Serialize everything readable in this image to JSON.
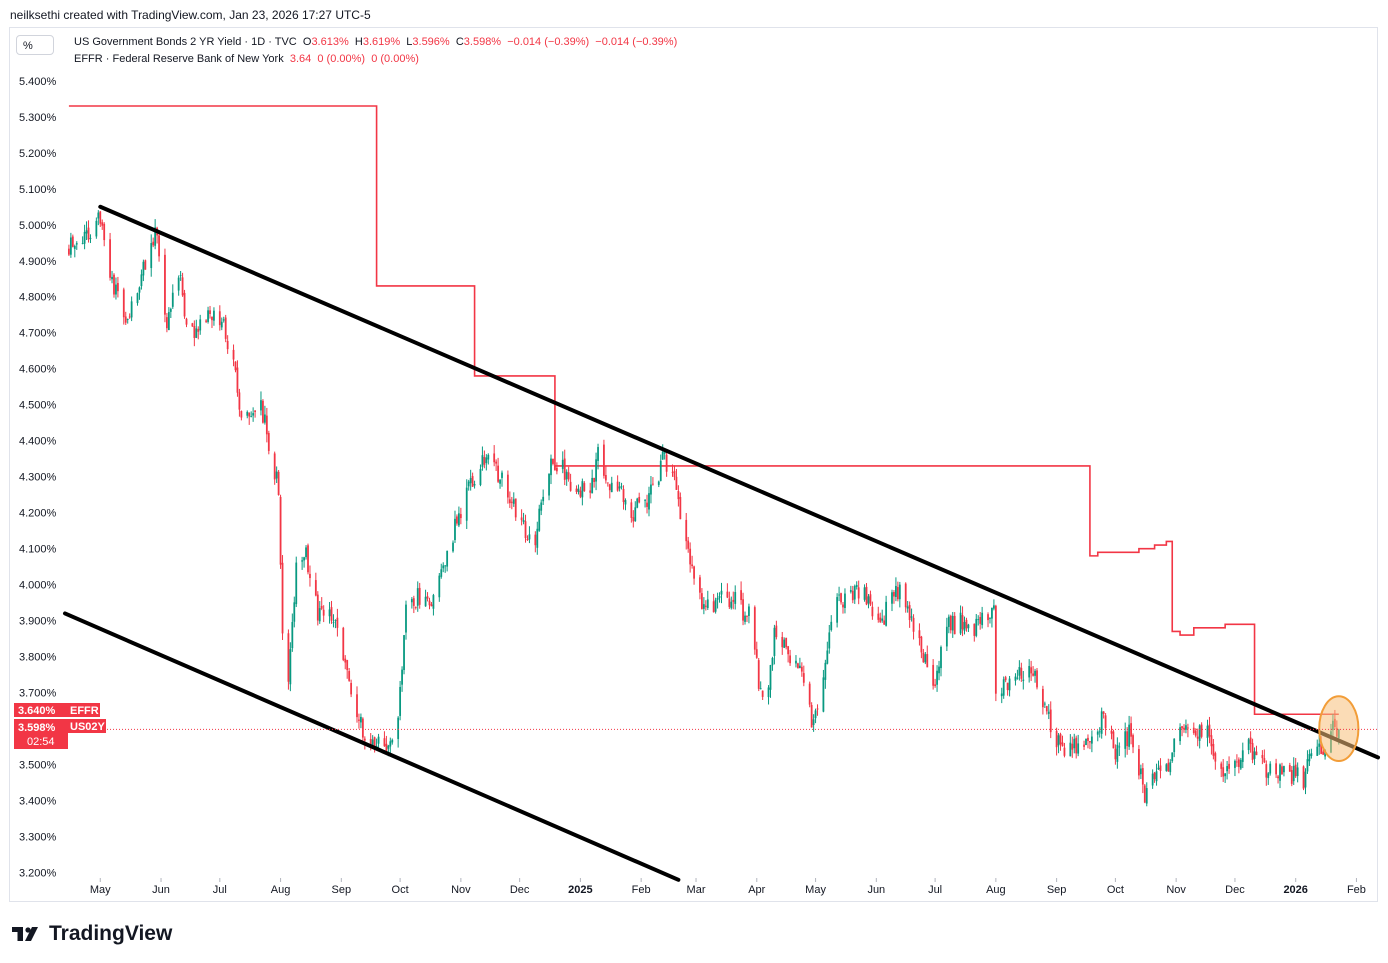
{
  "header": {
    "credit": "neilksethi created with TradingView.com, Jan 23, 2026 17:27 UTC-5",
    "percent_button": "%"
  },
  "legend": {
    "series1": {
      "name": "US Government Bonds 2 YR Yield · 1D · TVC",
      "open_label": "O",
      "open": "3.613%",
      "high_label": "H",
      "high": "3.619%",
      "low_label": "L",
      "low": "3.596%",
      "close_label": "C",
      "close": "3.598%",
      "change": "−0.014 (−0.39%)",
      "change2": "−0.014 (−0.39%)"
    },
    "series2": {
      "name": "EFFR · Federal Reserve Bank of New York",
      "value": "3.64",
      "change": "0 (0.00%)",
      "change2": "0 (0.00%)"
    }
  },
  "badges": {
    "effr_value": "3.640%",
    "effr_label": "EFFR",
    "us02y_value": "3.598%",
    "us02y_label": "US02Y",
    "countdown": "02:54"
  },
  "brand": {
    "name": "TradingView"
  },
  "colors": {
    "up": "#089981",
    "down": "#f23645",
    "effr": "#f23645",
    "trendline": "#000000",
    "highlight_fill": "#f7c07a",
    "highlight_stroke": "#f29d38"
  },
  "chart_data": {
    "type": "candlestick",
    "y_axis": {
      "ticks": [
        "5.400%",
        "5.300%",
        "5.200%",
        "5.100%",
        "5.000%",
        "4.900%",
        "4.800%",
        "4.700%",
        "4.600%",
        "4.500%",
        "4.400%",
        "4.300%",
        "4.200%",
        "4.100%",
        "4.000%",
        "3.900%",
        "3.800%",
        "3.700%",
        "3.600%",
        "3.500%",
        "3.400%",
        "3.300%",
        "3.200%"
      ],
      "range": [
        3.185,
        5.43
      ]
    },
    "x_axis": {
      "ticks": [
        {
          "label": "May",
          "date": "2024-05-01"
        },
        {
          "label": "Jun",
          "date": "2024-06-01"
        },
        {
          "label": "Jul",
          "date": "2024-07-01"
        },
        {
          "label": "Aug",
          "date": "2024-08-01"
        },
        {
          "label": "Sep",
          "date": "2024-09-01"
        },
        {
          "label": "Oct",
          "date": "2024-10-01"
        },
        {
          "label": "Nov",
          "date": "2024-11-01"
        },
        {
          "label": "Dec",
          "date": "2024-12-01"
        },
        {
          "label": "2025",
          "date": "2025-01-01",
          "bold": true
        },
        {
          "label": "Feb",
          "date": "2025-02-01"
        },
        {
          "label": "Mar",
          "date": "2025-03-01"
        },
        {
          "label": "Apr",
          "date": "2025-04-01"
        },
        {
          "label": "May",
          "date": "2025-05-01"
        },
        {
          "label": "Jun",
          "date": "2025-06-01"
        },
        {
          "label": "Jul",
          "date": "2025-07-01"
        },
        {
          "label": "Aug",
          "date": "2025-08-01"
        },
        {
          "label": "Sep",
          "date": "2025-09-01"
        },
        {
          "label": "Oct",
          "date": "2025-10-01"
        },
        {
          "label": "Nov",
          "date": "2025-11-01"
        },
        {
          "label": "Dec",
          "date": "2025-12-01"
        },
        {
          "label": "2026",
          "date": "2026-01-01",
          "bold": true
        },
        {
          "label": "Feb",
          "date": "2026-02-01"
        }
      ],
      "range": [
        "2024-04-13",
        "2026-02-12"
      ]
    },
    "series": [
      {
        "name": "US02Y",
        "kind": "candles",
        "anchors": [
          [
            "2024-04-15",
            4.93
          ],
          [
            "2024-04-25",
            4.98
          ],
          [
            "2024-05-01",
            5.03
          ],
          [
            "2024-05-08",
            4.82
          ],
          [
            "2024-05-15",
            4.74
          ],
          [
            "2024-05-22",
            4.86
          ],
          [
            "2024-05-29",
            4.99
          ],
          [
            "2024-06-04",
            4.73
          ],
          [
            "2024-06-10",
            4.88
          ],
          [
            "2024-06-14",
            4.7
          ],
          [
            "2024-06-20",
            4.72
          ],
          [
            "2024-06-28",
            4.75
          ],
          [
            "2024-07-03",
            4.72
          ],
          [
            "2024-07-08",
            4.6
          ],
          [
            "2024-07-12",
            4.48
          ],
          [
            "2024-07-16",
            4.44
          ],
          [
            "2024-07-22",
            4.51
          ],
          [
            "2024-07-26",
            4.38
          ],
          [
            "2024-07-31",
            4.27
          ],
          [
            "2024-08-02",
            3.88
          ],
          [
            "2024-08-05",
            3.75
          ],
          [
            "2024-08-09",
            4.05
          ],
          [
            "2024-08-14",
            4.08
          ],
          [
            "2024-08-20",
            3.93
          ],
          [
            "2024-08-28",
            3.9
          ],
          [
            "2024-09-04",
            3.75
          ],
          [
            "2024-09-10",
            3.62
          ],
          [
            "2024-09-16",
            3.57
          ],
          [
            "2024-09-24",
            3.55
          ],
          [
            "2024-09-30",
            3.63
          ],
          [
            "2024-10-04",
            3.93
          ],
          [
            "2024-10-10",
            3.97
          ],
          [
            "2024-10-16",
            3.95
          ],
          [
            "2024-10-22",
            4.05
          ],
          [
            "2024-10-28",
            4.14
          ],
          [
            "2024-11-06",
            4.28
          ],
          [
            "2024-11-11",
            4.33
          ],
          [
            "2024-11-15",
            4.36
          ],
          [
            "2024-11-20",
            4.3
          ],
          [
            "2024-11-26",
            4.25
          ],
          [
            "2024-12-03",
            4.16
          ],
          [
            "2024-12-09",
            4.13
          ],
          [
            "2024-12-13",
            4.24
          ],
          [
            "2024-12-18",
            4.35
          ],
          [
            "2024-12-23",
            4.32
          ],
          [
            "2024-12-31",
            4.25
          ],
          [
            "2025-01-07",
            4.28
          ],
          [
            "2025-01-10",
            4.38
          ],
          [
            "2025-01-15",
            4.27
          ],
          [
            "2025-01-21",
            4.28
          ],
          [
            "2025-01-27",
            4.2
          ],
          [
            "2025-02-03",
            4.23
          ],
          [
            "2025-02-10",
            4.29
          ],
          [
            "2025-02-12",
            4.36
          ],
          [
            "2025-02-18",
            4.28
          ],
          [
            "2025-02-24",
            4.13
          ],
          [
            "2025-03-03",
            3.95
          ],
          [
            "2025-03-10",
            3.92
          ],
          [
            "2025-03-14",
            3.98
          ],
          [
            "2025-03-21",
            3.95
          ],
          [
            "2025-03-28",
            3.91
          ],
          [
            "2025-04-03",
            3.7
          ],
          [
            "2025-04-07",
            3.7
          ],
          [
            "2025-04-10",
            3.87
          ],
          [
            "2025-04-15",
            3.82
          ],
          [
            "2025-04-22",
            3.79
          ],
          [
            "2025-04-30",
            3.6
          ],
          [
            "2025-05-06",
            3.8
          ],
          [
            "2025-05-12",
            3.98
          ],
          [
            "2025-05-16",
            3.96
          ],
          [
            "2025-05-22",
            4.0
          ],
          [
            "2025-05-29",
            3.94
          ],
          [
            "2025-06-04",
            3.89
          ],
          [
            "2025-06-09",
            4.0
          ],
          [
            "2025-06-16",
            3.95
          ],
          [
            "2025-06-24",
            3.82
          ],
          [
            "2025-06-30",
            3.72
          ],
          [
            "2025-07-07",
            3.88
          ],
          [
            "2025-07-14",
            3.9
          ],
          [
            "2025-07-23",
            3.88
          ],
          [
            "2025-07-31",
            3.94
          ],
          [
            "2025-08-01",
            3.7
          ],
          [
            "2025-08-07",
            3.73
          ],
          [
            "2025-08-14",
            3.76
          ],
          [
            "2025-08-20",
            3.75
          ],
          [
            "2025-08-28",
            3.62
          ],
          [
            "2025-09-05",
            3.52
          ],
          [
            "2025-09-11",
            3.55
          ],
          [
            "2025-09-18",
            3.58
          ],
          [
            "2025-09-25",
            3.63
          ],
          [
            "2025-10-01",
            3.54
          ],
          [
            "2025-10-09",
            3.59
          ],
          [
            "2025-10-16",
            3.42
          ],
          [
            "2025-10-20",
            3.46
          ],
          [
            "2025-10-28",
            3.49
          ],
          [
            "2025-11-03",
            3.6
          ],
          [
            "2025-11-10",
            3.59
          ],
          [
            "2025-11-18",
            3.58
          ],
          [
            "2025-11-25",
            3.47
          ],
          [
            "2025-12-01",
            3.5
          ],
          [
            "2025-12-08",
            3.56
          ],
          [
            "2025-12-11",
            3.53
          ],
          [
            "2025-12-17",
            3.48
          ],
          [
            "2025-12-24",
            3.48
          ],
          [
            "2025-12-30",
            3.47
          ],
          [
            "2026-01-05",
            3.46
          ],
          [
            "2026-01-09",
            3.54
          ],
          [
            "2026-01-14",
            3.53
          ],
          [
            "2026-01-20",
            3.6
          ],
          [
            "2026-01-23",
            3.598
          ]
        ]
      },
      {
        "name": "EFFR",
        "kind": "step",
        "points": [
          [
            "2024-04-15",
            5.33
          ],
          [
            "2024-09-19",
            4.83
          ],
          [
            "2024-11-08",
            4.58
          ],
          [
            "2024-12-19",
            4.33
          ],
          [
            "2025-09-18",
            4.08
          ],
          [
            "2025-09-22",
            4.09
          ],
          [
            "2025-10-13",
            4.1
          ],
          [
            "2025-10-21",
            4.11
          ],
          [
            "2025-10-27",
            4.12
          ],
          [
            "2025-10-30",
            3.87
          ],
          [
            "2025-11-03",
            3.86
          ],
          [
            "2025-11-10",
            3.88
          ],
          [
            "2025-11-26",
            3.89
          ],
          [
            "2025-12-11",
            3.64
          ],
          [
            "2026-01-23",
            3.64
          ]
        ]
      }
    ],
    "trendlines": [
      {
        "name": "upper-channel",
        "from": [
          "2024-05-01",
          5.05
        ],
        "to": [
          "2026-02-12",
          3.52
        ]
      },
      {
        "name": "lower-channel",
        "from": [
          "2024-04-13",
          3.92
        ],
        "to": [
          "2025-02-20",
          3.18
        ]
      }
    ],
    "highlight": {
      "center": [
        "2026-01-23",
        3.6
      ],
      "radius_days": 10,
      "radius_value": 0.09
    }
  }
}
